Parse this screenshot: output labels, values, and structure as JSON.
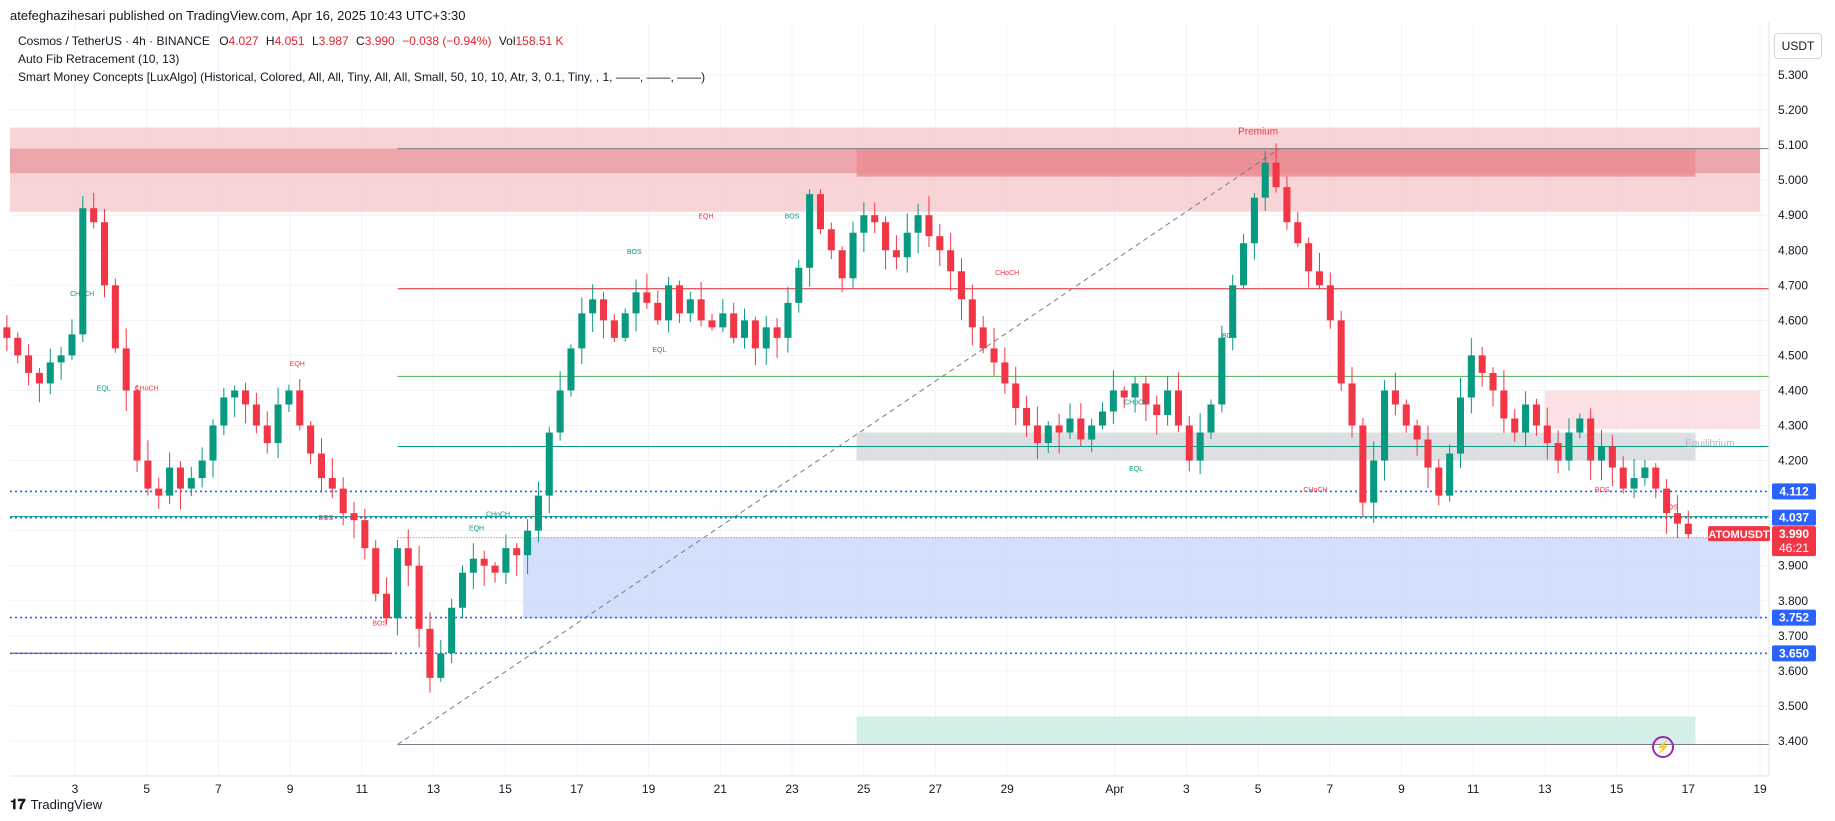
{
  "header": {
    "published": "atefeghazihesari published on TradingView.com, Apr 16, 2025 10:43 UTC+3:30"
  },
  "legend": {
    "symbol": "Cosmos / TetherUS · 4h · BINANCE",
    "o_label": "O",
    "o": "4.027",
    "h_label": "H",
    "h": "4.051",
    "l_label": "L",
    "l": "3.987",
    "c_label": "C",
    "c": "3.990",
    "change": "−0.038 (−0.94%)",
    "vol_label": "Vol",
    "vol": "158.51 K",
    "fib": "Auto Fib Retracement (10, 13)",
    "smc": "Smart Money Concepts [LuxAlgo] (Historical, Colored, All, All, Tiny, All, All, Small, 50, 10, 10, Atr, 3, 0.1, Tiny, , 1, ——, ——, ——)"
  },
  "currency_button": "USDT",
  "footer": {
    "brand": "TradingView"
  },
  "colors": {
    "up": "#089981",
    "down": "#f23645",
    "blue": "#2962ff",
    "premium": "#f7c5c9",
    "discount": "#c8d8fb",
    "equilibrium": "#d5d7dc"
  },
  "chart_data": {
    "type": "candlestick",
    "symbol": "ATOMUSDT",
    "timeframe": "4h",
    "ylim": [
      3.36,
      5.36
    ],
    "yticks": [
      "5.300",
      "5.200",
      "5.100",
      "5.000",
      "4.900",
      "4.800",
      "4.700",
      "4.600",
      "4.500",
      "4.400",
      "4.300",
      "4.200",
      "4.100",
      "4.000",
      "3.900",
      "3.800",
      "3.700",
      "3.600",
      "3.500",
      "3.400"
    ],
    "xticks": [
      "3",
      "5",
      "7",
      "9",
      "11",
      "13",
      "15",
      "17",
      "19",
      "21",
      "23",
      "25",
      "27",
      "29",
      "Apr",
      "3",
      "5",
      "7",
      "9",
      "11",
      "13",
      "15",
      "17",
      "19"
    ],
    "close_path": [
      4.55,
      4.5,
      4.45,
      4.42,
      4.48,
      4.5,
      4.56,
      4.92,
      4.88,
      4.7,
      4.52,
      4.4,
      4.2,
      4.12,
      4.1,
      4.18,
      4.12,
      4.15,
      4.2,
      4.3,
      4.38,
      4.4,
      4.36,
      4.3,
      4.25,
      4.36,
      4.4,
      4.3,
      4.22,
      4.15,
      4.12,
      4.05,
      4.03,
      3.95,
      3.82,
      3.75,
      3.95,
      3.9,
      3.72,
      3.58,
      3.65,
      3.78,
      3.88,
      3.92,
      3.9,
      3.88,
      3.95,
      3.93,
      4.0,
      4.1,
      4.28,
      4.4,
      4.52,
      4.62,
      4.66,
      4.6,
      4.55,
      4.62,
      4.68,
      4.65,
      4.6,
      4.7,
      4.62,
      4.66,
      4.6,
      4.58,
      4.62,
      4.55,
      4.6,
      4.52,
      4.58,
      4.55,
      4.65,
      4.75,
      4.96,
      4.86,
      4.8,
      4.72,
      4.85,
      4.9,
      4.88,
      4.8,
      4.78,
      4.85,
      4.9,
      4.84,
      4.8,
      4.74,
      4.66,
      4.58,
      4.52,
      4.48,
      4.42,
      4.35,
      4.3,
      4.25,
      4.3,
      4.28,
      4.32,
      4.26,
      4.3,
      4.34,
      4.4,
      4.38,
      4.42,
      4.36,
      4.33,
      4.4,
      4.3,
      4.2,
      4.28,
      4.36,
      4.55,
      4.7,
      4.82,
      4.95,
      5.05,
      4.98,
      4.88,
      4.82,
      4.74,
      4.7,
      4.6,
      4.42,
      4.3,
      4.08,
      4.2,
      4.4,
      4.36,
      4.3,
      4.26,
      4.18,
      4.1,
      4.22,
      4.38,
      4.5,
      4.45,
      4.4,
      4.32,
      4.28,
      4.36,
      4.3,
      4.25,
      4.2,
      4.28,
      4.32,
      4.2,
      4.24,
      4.18,
      4.12,
      4.15,
      4.18,
      4.12,
      4.05,
      4.02,
      3.99
    ],
    "candle_days": 29.3,
    "first_day_offset": -0.9,
    "last": {
      "label": "ATOMUSDT",
      "price": "3.990",
      "countdown": "46:21"
    },
    "price_lines": [
      {
        "value": 4.112,
        "label": "4.112",
        "style": "dotted",
        "color": "#2962ff"
      },
      {
        "value": 4.037,
        "label": "4.037",
        "style": "dotted",
        "color": "#2962ff"
      },
      {
        "value": 3.752,
        "label": "3.752",
        "style": "dotted",
        "color": "#2962ff"
      },
      {
        "value": 3.65,
        "label": "3.650",
        "style": "dotted",
        "color": "#2962ff"
      }
    ],
    "fib_levels": [
      {
        "value": 5.09,
        "color": "#787b86"
      },
      {
        "value": 4.69,
        "color": "#e0242f"
      },
      {
        "value": 4.44,
        "color": "#4caf50"
      },
      {
        "value": 4.24,
        "color": "#089981"
      },
      {
        "value": 4.04,
        "color": "#089981"
      },
      {
        "value": 3.98,
        "color": "#f23645"
      },
      {
        "value": 3.39,
        "color": "#787b86"
      }
    ],
    "zones": [
      {
        "kind": "premium",
        "from_day": -0.9,
        "to_day": 48,
        "y1": 4.91,
        "y2": 5.15,
        "color": "#f7c5c9"
      },
      {
        "kind": "premium-dark",
        "from_day": -0.9,
        "to_day": 48,
        "y1": 5.02,
        "y2": 5.09,
        "color": "#e89aa0"
      },
      {
        "kind": "ob-red",
        "from_day": 22.8,
        "to_day": 46.2,
        "y1": 5.01,
        "y2": 5.09,
        "color": "#ec8c93"
      },
      {
        "kind": "premium-right",
        "from_day": 42,
        "to_day": 48,
        "y1": 4.29,
        "y2": 4.4,
        "color": "#fadadd"
      },
      {
        "kind": "equilibrium",
        "from_day": 22.8,
        "to_day": 46.2,
        "y1": 4.2,
        "y2": 4.28,
        "color": "#d5d7dc"
      },
      {
        "kind": "discount",
        "from_day": 13.5,
        "to_day": 48,
        "y1": 3.75,
        "y2": 3.98,
        "color": "#c8d8fb"
      },
      {
        "kind": "demand",
        "from_day": 22.8,
        "to_day": 46.2,
        "y1": 3.39,
        "y2": 3.47,
        "color": "#c9ebe2"
      }
    ],
    "labels": [
      {
        "text": "Premium",
        "day": 34.0,
        "y": 5.13,
        "color": "#f23645"
      },
      {
        "text": "Equilibrium",
        "day": 46.6,
        "y": 4.24,
        "color": "#b2b5be"
      },
      {
        "text": "CHoCH",
        "day": 1.2,
        "y": 4.67,
        "color": "#089981"
      },
      {
        "text": "EQL",
        "day": 1.8,
        "y": 4.4,
        "color": "#089981"
      },
      {
        "text": "CHoCH",
        "day": 3.0,
        "y": 4.4,
        "color": "#f23645"
      },
      {
        "text": "EQH",
        "day": 7.2,
        "y": 4.47,
        "color": "#f23645"
      },
      {
        "text": "BOS",
        "day": 8.0,
        "y": 4.03,
        "color": "#f23645"
      },
      {
        "text": "BOS",
        "day": 9.5,
        "y": 3.73,
        "color": "#f23645"
      },
      {
        "text": "EQH",
        "day": 12.2,
        "y": 4.0,
        "color": "#089981"
      },
      {
        "text": "CHoCH",
        "day": 12.8,
        "y": 4.04,
        "color": "#089981"
      },
      {
        "text": "BOS",
        "day": 16.6,
        "y": 4.79,
        "color": "#089981"
      },
      {
        "text": "EQL",
        "day": 17.3,
        "y": 4.51,
        "color": "#089981"
      },
      {
        "text": "EQH",
        "day": 18.6,
        "y": 4.89,
        "color": "#f23645"
      },
      {
        "text": "BOS",
        "day": 21.0,
        "y": 4.89,
        "color": "#089981"
      },
      {
        "text": "CHoCH",
        "day": 27.0,
        "y": 4.73,
        "color": "#f23645"
      },
      {
        "text": "CHoCH",
        "day": 30.6,
        "y": 4.36,
        "color": "#089981"
      },
      {
        "text": "EQL",
        "day": 30.6,
        "y": 4.17,
        "color": "#089981"
      },
      {
        "text": "BOS",
        "day": 33.2,
        "y": 4.55,
        "color": "#089981"
      },
      {
        "text": "CHoCH",
        "day": 35.6,
        "y": 4.11,
        "color": "#f23645"
      },
      {
        "text": "BOS",
        "day": 43.6,
        "y": 4.11,
        "color": "#f23645"
      },
      {
        "text": "BOS",
        "day": 45.5,
        "y": 4.06,
        "color": "#f23645"
      }
    ]
  }
}
